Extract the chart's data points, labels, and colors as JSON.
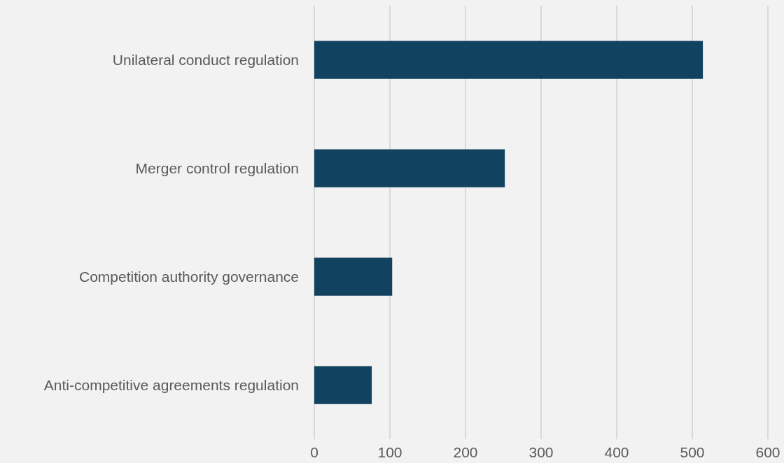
{
  "chart_data": {
    "type": "bar",
    "orientation": "horizontal",
    "categories": [
      "Unilateral conduct regulation",
      "Merger control regulation",
      "Competition authority governance",
      "Anti-competitive agreements regulation"
    ],
    "values": [
      514,
      252,
      103,
      76
    ],
    "color": "#11425f",
    "xlim": [
      0,
      600
    ],
    "xticks": [
      0,
      100,
      200,
      300,
      400,
      500,
      600
    ],
    "grid": "x"
  }
}
